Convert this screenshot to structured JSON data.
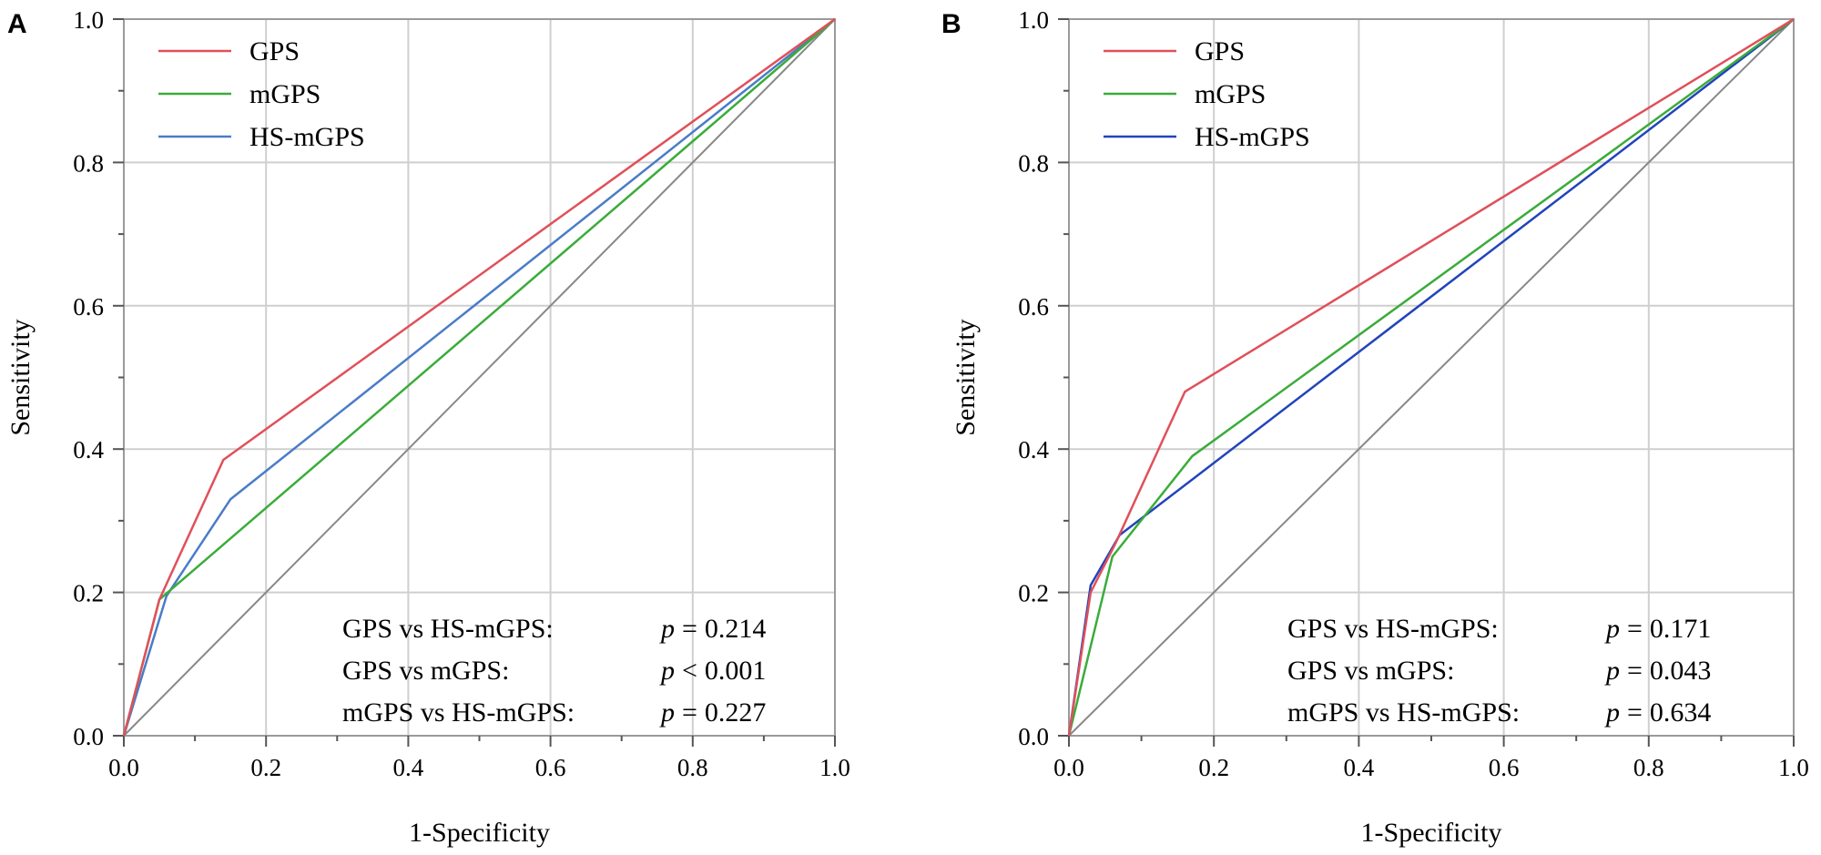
{
  "chart_data": [
    {
      "type": "line",
      "panel_label": "A",
      "xlabel": "1-Specificity",
      "ylabel": "Sensitivity",
      "xlim": [
        0,
        1
      ],
      "ylim": [
        0,
        1
      ],
      "x_ticks": [
        "0.0",
        "0.2",
        "0.4",
        "0.6",
        "0.8",
        "1.0"
      ],
      "y_ticks": [
        "0.0",
        "0.2",
        "0.4",
        "0.6",
        "0.8",
        "1.0"
      ],
      "grid": true,
      "legend_position": "top-left",
      "series": [
        {
          "name": "GPS",
          "color": "#e0505a",
          "points": [
            [
              0,
              0
            ],
            [
              0.05,
              0.19
            ],
            [
              0.14,
              0.385
            ],
            [
              1,
              1
            ]
          ]
        },
        {
          "name": "mGPS",
          "color": "#3aac3a",
          "points": [
            [
              0,
              0
            ],
            [
              0.05,
              0.19
            ],
            [
              1,
              1
            ]
          ]
        },
        {
          "name": "HS-mGPS",
          "color": "#4a7cc8",
          "points": [
            [
              0,
              0
            ],
            [
              0.06,
              0.195
            ],
            [
              0.15,
              0.33
            ],
            [
              1,
              1
            ]
          ]
        }
      ],
      "reference_line": {
        "color": "#888888",
        "points": [
          [
            0,
            0
          ],
          [
            1,
            1
          ]
        ]
      },
      "annotations": [
        {
          "label": "GPS vs HS-mGPS:",
          "p_symbol": "p",
          "relation": "=",
          "value": "0.214"
        },
        {
          "label": "GPS vs mGPS:",
          "p_symbol": "p",
          "relation": "<",
          "value": "0.001"
        },
        {
          "label": "mGPS vs HS-mGPS:",
          "p_symbol": "p",
          "relation": "=",
          "value": "0.227"
        }
      ]
    },
    {
      "type": "line",
      "panel_label": "B",
      "xlabel": "1-Specificity",
      "ylabel": "Sensitivity",
      "xlim": [
        0,
        1
      ],
      "ylim": [
        0,
        1
      ],
      "x_ticks": [
        "0.0",
        "0.2",
        "0.4",
        "0.6",
        "0.8",
        "1.0"
      ],
      "y_ticks": [
        "0.0",
        "0.2",
        "0.4",
        "0.6",
        "0.8",
        "1.0"
      ],
      "grid": true,
      "legend_position": "top-left",
      "series": [
        {
          "name": "GPS",
          "color": "#e0505a",
          "points": [
            [
              0,
              0
            ],
            [
              0.03,
              0.2
            ],
            [
              0.065,
              0.27
            ],
            [
              0.16,
              0.48
            ],
            [
              1,
              1
            ]
          ]
        },
        {
          "name": "mGPS",
          "color": "#3aac3a",
          "points": [
            [
              0,
              0
            ],
            [
              0.06,
              0.25
            ],
            [
              0.17,
              0.39
            ],
            [
              1,
              1
            ]
          ]
        },
        {
          "name": "HS-mGPS",
          "color": "#2244bb",
          "points": [
            [
              0,
              0
            ],
            [
              0.03,
              0.21
            ],
            [
              0.07,
              0.28
            ],
            [
              1,
              1
            ]
          ]
        }
      ],
      "reference_line": {
        "color": "#888888",
        "points": [
          [
            0,
            0
          ],
          [
            1,
            1
          ]
        ]
      },
      "annotations": [
        {
          "label": "GPS vs HS-mGPS:",
          "p_symbol": "p",
          "relation": "=",
          "value": "0.171"
        },
        {
          "label": "GPS vs mGPS:",
          "p_symbol": "p",
          "relation": "=",
          "value": "0.043"
        },
        {
          "label": "mGPS vs HS-mGPS:",
          "p_symbol": "p",
          "relation": "=",
          "value": "0.634"
        }
      ]
    }
  ]
}
